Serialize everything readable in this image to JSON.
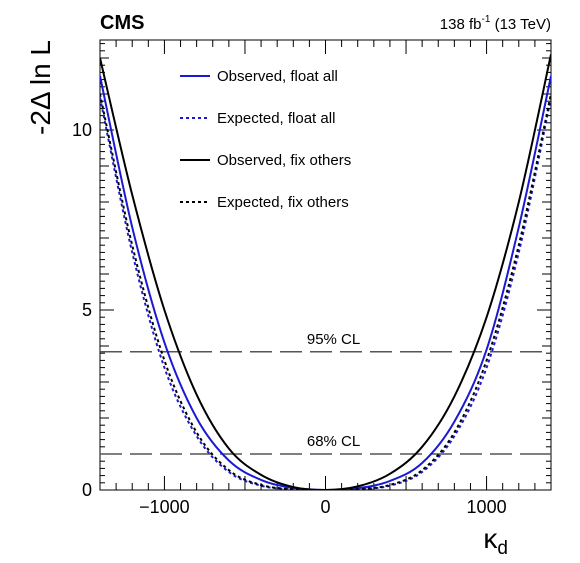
{
  "chart_data": {
    "type": "line",
    "experiment_label": "CMS",
    "lumi_label": {
      "base": "138 fb",
      "sup": "-1",
      "rest": " (13 TeV)"
    },
    "xlabel": {
      "main": "κ",
      "sub": "d"
    },
    "ylabel": "-2Δ ln L",
    "xlim": [
      -1400,
      1400
    ],
    "ylim": [
      0,
      12.5
    ],
    "x_ticks": [
      {
        "value": -1000,
        "label": "−1000"
      },
      {
        "value": 0,
        "label": "0"
      },
      {
        "value": 1000,
        "label": "1000"
      }
    ],
    "y_ticks": [
      {
        "value": 0,
        "label": "0"
      },
      {
        "value": 5,
        "label": "5"
      },
      {
        "value": 10,
        "label": "10"
      }
    ],
    "cl_lines": [
      {
        "y": 3.84,
        "label": "95% CL"
      },
      {
        "y": 1.0,
        "label": "68% CL"
      }
    ],
    "series": [
      {
        "name": "Observed, float all",
        "color": "#1a1ad4",
        "style": "solid",
        "x": [
          -1400,
          -1200,
          -1000,
          -800,
          -600,
          -400,
          -200,
          0,
          200,
          400,
          600,
          800,
          1000,
          1200,
          1400
        ],
        "y": [
          11.5,
          7.3,
          4.1,
          2.0,
          0.82,
          0.28,
          0.06,
          0.0,
          0.05,
          0.25,
          0.75,
          1.9,
          3.9,
          7.3,
          11.5
        ]
      },
      {
        "name": "Expected, float all",
        "color": "#1a1ad4",
        "style": "dotted",
        "x": [
          -1400,
          -1200,
          -1000,
          -800,
          -600,
          -400,
          -200,
          0,
          200,
          400,
          600,
          800,
          1000,
          1200,
          1400
        ],
        "y": [
          10.9,
          6.6,
          3.4,
          1.5,
          0.5,
          0.12,
          0.02,
          0.0,
          0.02,
          0.12,
          0.5,
          1.5,
          3.4,
          6.6,
          10.9
        ]
      },
      {
        "name": "Observed, fix others",
        "color": "#000000",
        "style": "solid",
        "x": [
          -1400,
          -1200,
          -1000,
          -800,
          -600,
          -400,
          -200,
          0,
          200,
          400,
          600,
          800,
          1000,
          1200,
          1400
        ],
        "y": [
          12.0,
          8.2,
          5.0,
          2.65,
          1.15,
          0.42,
          0.08,
          0.0,
          0.1,
          0.45,
          1.2,
          2.6,
          4.8,
          8.0,
          12.1
        ]
      },
      {
        "name": "Expected, fix others",
        "color": "#000000",
        "style": "dotted",
        "x": [
          -1400,
          -1200,
          -1000,
          -800,
          -600,
          -400,
          -200,
          0,
          200,
          400,
          600,
          800,
          1000,
          1200,
          1400
        ],
        "y": [
          11.0,
          6.8,
          3.6,
          1.6,
          0.55,
          0.14,
          0.02,
          0.0,
          0.02,
          0.14,
          0.55,
          1.6,
          3.6,
          6.8,
          11.0
        ]
      }
    ]
  }
}
